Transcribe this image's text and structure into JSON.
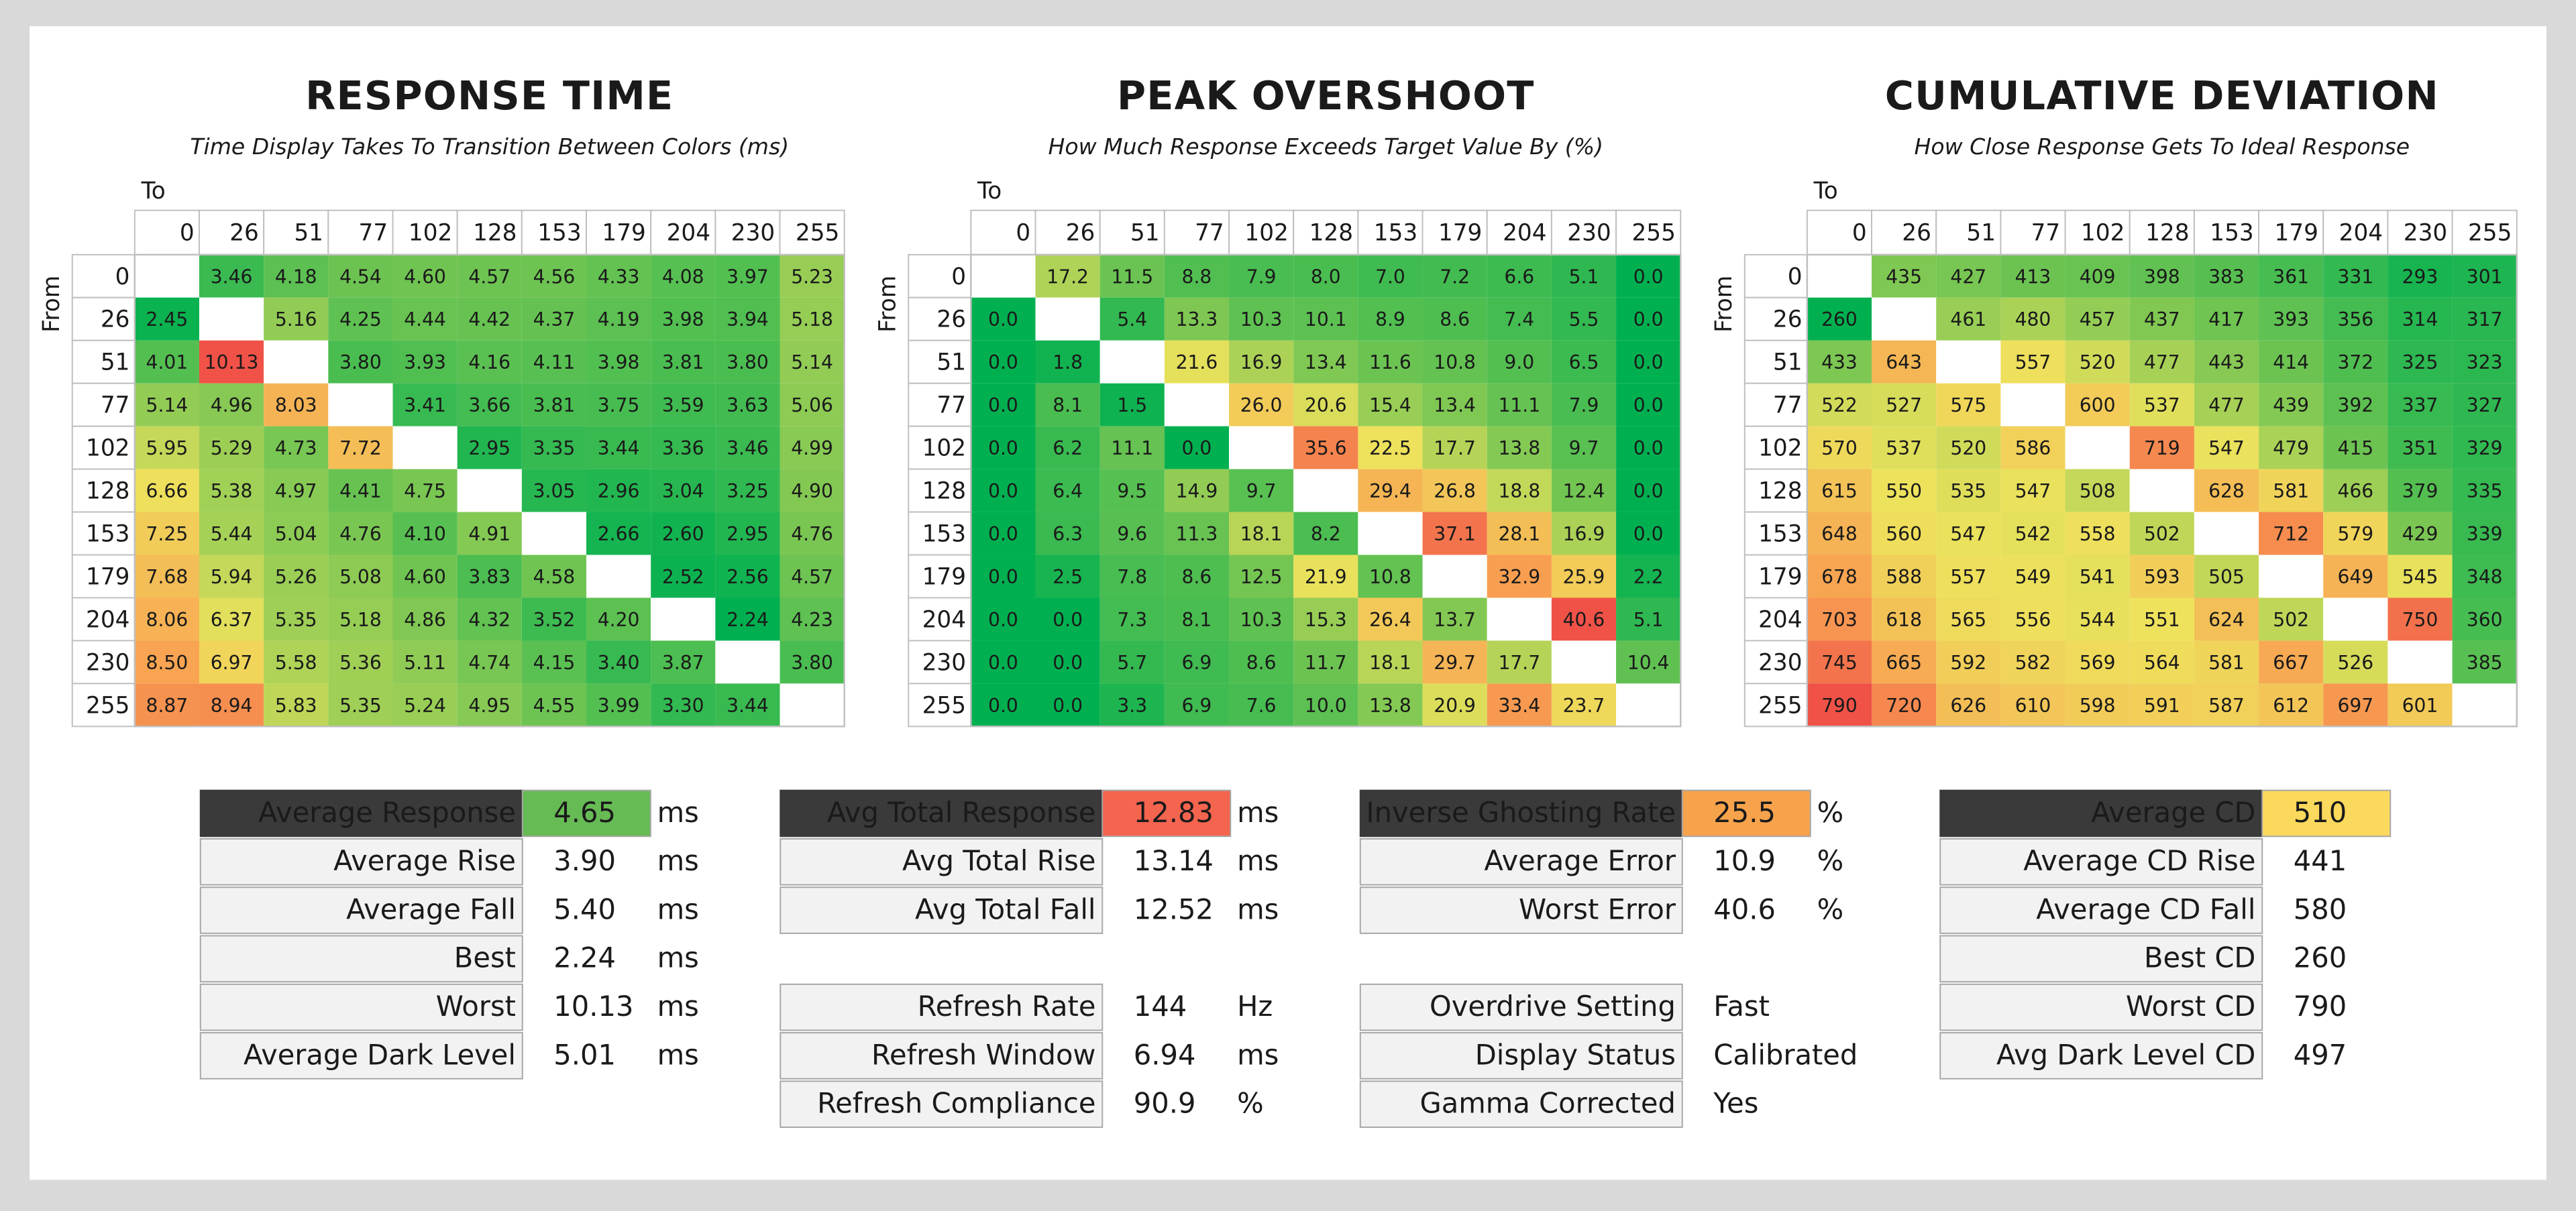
{
  "panels": [
    {
      "title": "RESPONSE TIME",
      "subtitle": "Time Display Takes To Transition Between Colors (ms)",
      "to_label": "To",
      "from_label": "From",
      "levels": [
        0,
        26,
        51,
        77,
        102,
        128,
        153,
        179,
        204,
        230,
        255
      ],
      "rows": [
        [
          null,
          "3.46",
          "4.18",
          "4.54",
          "4.60",
          "4.57",
          "4.56",
          "4.33",
          "4.08",
          "3.97",
          "5.23"
        ],
        [
          "2.45",
          null,
          "5.16",
          "4.25",
          "4.44",
          "4.42",
          "4.37",
          "4.19",
          "3.98",
          "3.94",
          "5.18"
        ],
        [
          "4.01",
          "10.13",
          null,
          "3.80",
          "3.93",
          "4.16",
          "4.11",
          "3.98",
          "3.81",
          "3.80",
          "5.14"
        ],
        [
          "5.14",
          "4.96",
          "8.03",
          null,
          "3.41",
          "3.66",
          "3.81",
          "3.75",
          "3.59",
          "3.63",
          "5.06"
        ],
        [
          "5.95",
          "5.29",
          "4.73",
          "7.72",
          null,
          "2.95",
          "3.35",
          "3.44",
          "3.36",
          "3.46",
          "4.99"
        ],
        [
          "6.66",
          "5.38",
          "4.97",
          "4.41",
          "4.75",
          null,
          "3.05",
          "2.96",
          "3.04",
          "3.25",
          "4.90"
        ],
        [
          "7.25",
          "5.44",
          "5.04",
          "4.76",
          "4.10",
          "4.91",
          null,
          "2.66",
          "2.60",
          "2.95",
          "4.76"
        ],
        [
          "7.68",
          "5.94",
          "5.26",
          "5.08",
          "4.60",
          "3.83",
          "4.58",
          null,
          "2.52",
          "2.56",
          "4.57"
        ],
        [
          "8.06",
          "6.37",
          "5.35",
          "5.18",
          "4.86",
          "4.32",
          "3.52",
          "4.20",
          null,
          "2.24",
          "4.23"
        ],
        [
          "8.50",
          "6.97",
          "5.58",
          "5.36",
          "5.11",
          "4.74",
          "4.15",
          "3.40",
          "3.87",
          null,
          "3.80"
        ],
        [
          "8.87",
          "8.94",
          "5.83",
          "5.35",
          "5.24",
          "4.95",
          "4.55",
          "3.99",
          "3.30",
          "3.44",
          null
        ]
      ]
    },
    {
      "title": "PEAK OVERSHOOT",
      "subtitle": "How Much Response Exceeds Target Value By (%)",
      "to_label": "To",
      "from_label": "From",
      "levels": [
        0,
        26,
        51,
        77,
        102,
        128,
        153,
        179,
        204,
        230,
        255
      ],
      "rows": [
        [
          null,
          "17.2",
          "11.5",
          "8.8",
          "7.9",
          "8.0",
          "7.0",
          "7.2",
          "6.6",
          "5.1",
          "0.0"
        ],
        [
          "0.0",
          null,
          "5.4",
          "13.3",
          "10.3",
          "10.1",
          "8.9",
          "8.6",
          "7.4",
          "5.5",
          "0.0"
        ],
        [
          "0.0",
          "1.8",
          null,
          "21.6",
          "16.9",
          "13.4",
          "11.6",
          "10.8",
          "9.0",
          "6.5",
          "0.0"
        ],
        [
          "0.0",
          "8.1",
          "1.5",
          null,
          "26.0",
          "20.6",
          "15.4",
          "13.4",
          "11.1",
          "7.9",
          "0.0"
        ],
        [
          "0.0",
          "6.2",
          "11.1",
          "0.0",
          null,
          "35.6",
          "22.5",
          "17.7",
          "13.8",
          "9.7",
          "0.0"
        ],
        [
          "0.0",
          "6.4",
          "9.5",
          "14.9",
          "9.7",
          null,
          "29.4",
          "26.8",
          "18.8",
          "12.4",
          "0.0"
        ],
        [
          "0.0",
          "6.3",
          "9.6",
          "11.3",
          "18.1",
          "8.2",
          null,
          "37.1",
          "28.1",
          "16.9",
          "0.0"
        ],
        [
          "0.0",
          "2.5",
          "7.8",
          "8.6",
          "12.5",
          "21.9",
          "10.8",
          null,
          "32.9",
          "25.9",
          "2.2"
        ],
        [
          "0.0",
          "0.0",
          "7.3",
          "8.1",
          "10.3",
          "15.3",
          "26.4",
          "13.7",
          null,
          "40.6",
          "5.1"
        ],
        [
          "0.0",
          "0.0",
          "5.7",
          "6.9",
          "8.6",
          "11.7",
          "18.1",
          "29.7",
          "17.7",
          null,
          "10.4"
        ],
        [
          "0.0",
          "0.0",
          "3.3",
          "6.9",
          "7.6",
          "10.0",
          "13.8",
          "20.9",
          "33.4",
          "23.7",
          null
        ]
      ]
    },
    {
      "title": "CUMULATIVE DEVIATION",
      "subtitle": "How Close Response Gets To Ideal Response",
      "to_label": "To",
      "from_label": "From",
      "levels": [
        0,
        26,
        51,
        77,
        102,
        128,
        153,
        179,
        204,
        230,
        255
      ],
      "rows": [
        [
          null,
          "435",
          "427",
          "413",
          "409",
          "398",
          "383",
          "361",
          "331",
          "293",
          "301"
        ],
        [
          "260",
          null,
          "461",
          "480",
          "457",
          "437",
          "417",
          "393",
          "356",
          "314",
          "317"
        ],
        [
          "433",
          "643",
          null,
          "557",
          "520",
          "477",
          "443",
          "414",
          "372",
          "325",
          "323"
        ],
        [
          "522",
          "527",
          "575",
          null,
          "600",
          "537",
          "477",
          "439",
          "392",
          "337",
          "327"
        ],
        [
          "570",
          "537",
          "520",
          "586",
          null,
          "719",
          "547",
          "479",
          "415",
          "351",
          "329"
        ],
        [
          "615",
          "550",
          "535",
          "547",
          "508",
          null,
          "628",
          "581",
          "466",
          "379",
          "335"
        ],
        [
          "648",
          "560",
          "547",
          "542",
          "558",
          "502",
          null,
          "712",
          "579",
          "429",
          "339"
        ],
        [
          "678",
          "588",
          "557",
          "549",
          "541",
          "593",
          "505",
          null,
          "649",
          "545",
          "348"
        ],
        [
          "703",
          "618",
          "565",
          "556",
          "544",
          "551",
          "624",
          "502",
          null,
          "750",
          "360"
        ],
        [
          "745",
          "665",
          "592",
          "582",
          "569",
          "564",
          "581",
          "667",
          "526",
          null,
          "385"
        ],
        [
          "790",
          "720",
          "626",
          "610",
          "598",
          "591",
          "587",
          "612",
          "697",
          "601",
          null
        ]
      ]
    }
  ],
  "stats": [
    {
      "highlight_color": "#67bb55",
      "blocks": [
        [
          {
            "label": "Average Response",
            "value": "4.65",
            "unit": "ms"
          },
          {
            "label": "Average Rise",
            "value": "3.90",
            "unit": "ms"
          },
          {
            "label": "Average Fall",
            "value": "5.40",
            "unit": "ms"
          },
          {
            "label": "Best",
            "value": "2.24",
            "unit": "ms"
          },
          {
            "label": "Worst",
            "value": "10.13",
            "unit": "ms"
          },
          {
            "label": "Average Dark Level",
            "value": "5.01",
            "unit": "ms"
          }
        ]
      ]
    },
    {
      "highlight_color": "#f4644f",
      "blocks": [
        [
          {
            "label": "Avg Total Response",
            "value": "12.83",
            "unit": "ms"
          },
          {
            "label": "Avg Total Rise",
            "value": "13.14",
            "unit": "ms"
          },
          {
            "label": "Avg Total Fall",
            "value": "12.52",
            "unit": "ms"
          }
        ],
        [
          {
            "label": "Refresh Rate",
            "value": "144",
            "unit": "Hz"
          },
          {
            "label": "Refresh Window",
            "value": "6.94",
            "unit": "ms"
          },
          {
            "label": "Refresh Compliance",
            "value": "90.9",
            "unit": "%"
          }
        ]
      ]
    },
    {
      "highlight_color": "#f7a34c",
      "blocks": [
        [
          {
            "label": "Inverse Ghosting Rate",
            "value": "25.5",
            "unit": "%"
          },
          {
            "label": "Average Error",
            "value": "10.9",
            "unit": "%"
          },
          {
            "label": "Worst Error",
            "value": "40.6",
            "unit": "%"
          }
        ],
        [
          {
            "label": "Overdrive Setting",
            "value": "Fast"
          },
          {
            "label": "Display Status",
            "value": "Calibrated"
          },
          {
            "label": "Gamma Corrected",
            "value": "Yes"
          }
        ]
      ]
    },
    {
      "highlight_color": "#fbd95c",
      "blocks": [
        [
          {
            "label": "Average CD",
            "value": "510"
          },
          {
            "label": "Average CD Rise",
            "value": "441"
          },
          {
            "label": "Average CD Fall",
            "value": "580"
          },
          {
            "label": "Best CD",
            "value": "260"
          },
          {
            "label": "Worst CD",
            "value": "790"
          },
          {
            "label": "Avg Dark Level CD",
            "value": "497"
          }
        ]
      ]
    }
  ]
}
